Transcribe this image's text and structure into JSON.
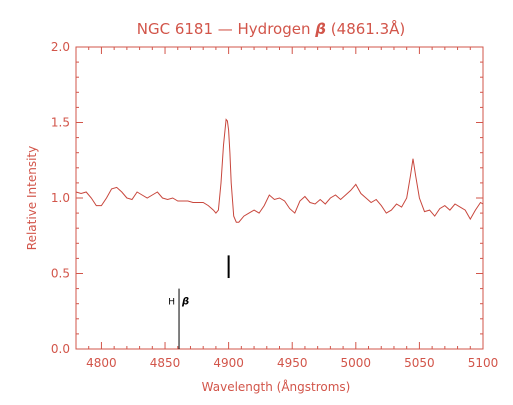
{
  "chart_data": {
    "type": "line",
    "title": "NGC 6181 — Hydrogen",
    "title_beta": "β",
    "title_suffix": "(4861.3Å)",
    "xlabel": "Wavelength (Ångstroms)",
    "ylabel": "Relative Intensity",
    "xlim": [
      4780,
      5100
    ],
    "ylim": [
      0.0,
      2.0
    ],
    "x_ticks": [
      4800,
      4850,
      4900,
      4950,
      5000,
      5050,
      5100
    ],
    "y_ticks": [
      0.0,
      0.5,
      1.0,
      1.5,
      2.0
    ],
    "y_tick_labels": [
      "0.0",
      "0.5",
      "1.0",
      "1.5",
      "2.0"
    ],
    "grid": false,
    "colors": {
      "axes": "#d2554a",
      "series": "#c8473d",
      "markers": "#000000"
    },
    "series": [
      {
        "x": [
          4780,
          4784,
          4788,
          4792,
          4796,
          4800,
          4804,
          4808,
          4812,
          4816,
          4820,
          4824,
          4828,
          4832,
          4836,
          4840,
          4844,
          4848,
          4852,
          4856,
          4860,
          4864,
          4868,
          4872,
          4876,
          4880,
          4884,
          4888,
          4890,
          4892,
          4894,
          4896,
          4898,
          4899,
          4900,
          4901,
          4902,
          4904,
          4906,
          4908,
          4912,
          4916,
          4920,
          4924,
          4928,
          4932,
          4936,
          4940,
          4944,
          4948,
          4952,
          4956,
          4960,
          4964,
          4968,
          4972,
          4976,
          4980,
          4984,
          4988,
          4992,
          4996,
          5000,
          5004,
          5008,
          5012,
          5016,
          5020,
          5024,
          5028,
          5032,
          5036,
          5040,
          5043,
          5045,
          5047,
          5050,
          5054,
          5058,
          5062,
          5066,
          5070,
          5074,
          5078,
          5082,
          5086,
          5090,
          5094,
          5098,
          5100
        ],
        "y": [
          1.04,
          1.03,
          1.04,
          1.0,
          0.95,
          0.95,
          1.0,
          1.06,
          1.07,
          1.04,
          1.0,
          0.99,
          1.04,
          1.02,
          1.0,
          1.02,
          1.04,
          1.0,
          0.99,
          1.0,
          0.98,
          0.98,
          0.98,
          0.97,
          0.97,
          0.97,
          0.95,
          0.92,
          0.9,
          0.92,
          1.1,
          1.35,
          1.52,
          1.51,
          1.45,
          1.3,
          1.1,
          0.88,
          0.84,
          0.84,
          0.88,
          0.9,
          0.92,
          0.9,
          0.95,
          1.02,
          0.99,
          1.0,
          0.98,
          0.93,
          0.9,
          0.98,
          1.01,
          0.97,
          0.96,
          0.99,
          0.96,
          1.0,
          1.02,
          0.99,
          1.02,
          1.05,
          1.09,
          1.03,
          1.0,
          0.97,
          0.99,
          0.95,
          0.9,
          0.92,
          0.96,
          0.94,
          1.0,
          1.15,
          1.26,
          1.15,
          1.0,
          0.91,
          0.92,
          0.88,
          0.93,
          0.95,
          0.92,
          0.96,
          0.94,
          0.92,
          0.86,
          0.92,
          0.97,
          0.96
        ]
      }
    ],
    "annotations": [
      {
        "type": "vline",
        "x": 4900,
        "y_from": 0.47,
        "y_to": 0.62
      },
      {
        "type": "vline",
        "x": 4861,
        "y_from": 0.0,
        "y_to": 0.4,
        "label": "H",
        "label_greek": "β"
      }
    ]
  }
}
